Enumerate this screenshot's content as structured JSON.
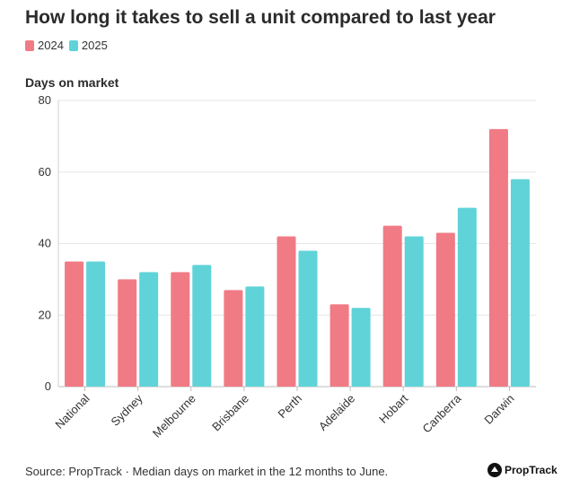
{
  "title": "How long it takes to sell a unit compared to last year",
  "legend": [
    {
      "label": "2024",
      "color": "#f07b85"
    },
    {
      "label": "2025",
      "color": "#5fd3d8"
    }
  ],
  "footer": {
    "source": "Source: PropTrack · Median days on market in the 12 months to June.",
    "brand": "PropTrack"
  },
  "chart_data": {
    "type": "bar",
    "title": "How long it takes to sell a unit compared to last year",
    "xlabel": "",
    "ylabel": "Days on market",
    "ylim": [
      0,
      80
    ],
    "yticks": [
      0,
      20,
      40,
      60,
      80
    ],
    "grid": true,
    "legend_position": "top-left",
    "categories": [
      "National",
      "Sydney",
      "Melbourne",
      "Brisbane",
      "Perth",
      "Adelaide",
      "Hobart",
      "Canberra",
      "Darwin"
    ],
    "series": [
      {
        "name": "2024",
        "color": "#f07b85",
        "values": [
          35,
          30,
          32,
          27,
          42,
          23,
          45,
          43,
          72
        ]
      },
      {
        "name": "2025",
        "color": "#5fd3d8",
        "values": [
          35,
          32,
          34,
          28,
          38,
          22,
          42,
          50,
          58
        ]
      }
    ]
  }
}
